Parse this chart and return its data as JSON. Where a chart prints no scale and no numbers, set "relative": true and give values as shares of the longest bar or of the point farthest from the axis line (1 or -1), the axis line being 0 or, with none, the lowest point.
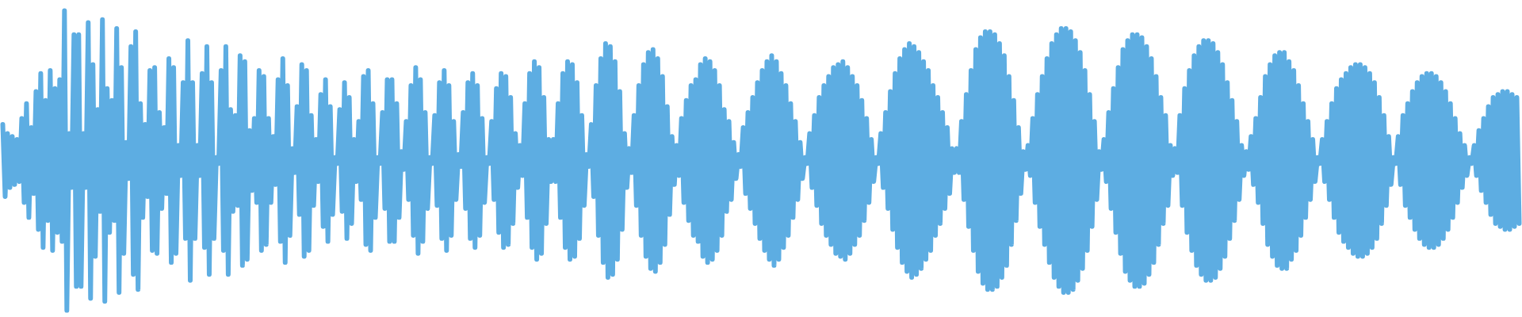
{
  "chart_data": {
    "type": "line",
    "relative": true,
    "tick_labels": false,
    "categories": [
      null,
      null,
      null,
      null,
      null,
      null,
      null,
      null,
      null,
      null,
      null,
      null,
      null,
      null,
      null,
      null,
      null,
      null,
      null,
      null,
      null,
      null,
      null,
      null,
      null,
      null,
      null,
      null,
      null,
      null,
      null,
      null,
      null,
      null,
      null,
      null,
      null,
      null,
      null,
      null,
      null,
      null,
      null,
      null,
      null,
      null,
      null,
      null,
      null,
      null,
      null,
      null,
      null,
      null,
      null,
      null,
      null,
      null,
      null,
      null,
      null,
      null,
      null,
      null,
      null,
      null,
      null,
      null,
      null,
      null,
      null,
      null,
      null,
      null,
      null,
      null,
      null,
      null,
      null,
      null,
      null,
      null,
      null,
      null,
      null,
      null,
      null,
      null,
      null,
      null,
      null,
      null,
      null,
      null,
      null,
      null,
      null,
      null,
      null,
      null,
      null,
      null,
      null,
      null,
      null,
      null,
      null,
      null,
      null,
      null,
      null,
      null,
      null,
      null,
      null,
      null,
      null,
      null,
      null,
      null,
      null,
      null,
      null,
      null,
      null,
      null,
      null,
      null,
      null,
      null,
      null,
      null,
      null,
      null,
      null,
      null,
      null,
      null,
      null,
      null,
      null,
      null,
      null,
      null,
      null,
      null,
      null,
      null,
      null,
      null,
      null,
      null,
      null,
      null,
      null,
      null,
      null,
      null,
      null,
      null,
      null,
      null,
      null,
      null,
      null,
      null,
      null,
      null,
      null,
      null,
      null,
      null,
      null,
      null,
      null,
      null,
      null,
      null,
      null,
      null,
      null,
      null,
      null,
      null,
      null,
      null,
      null,
      null,
      null,
      null,
      null,
      null,
      null,
      null,
      null,
      null,
      null,
      null,
      null,
      null,
      null,
      null,
      null,
      null,
      null,
      null,
      null,
      null,
      null,
      null,
      null,
      null,
      null,
      null,
      null,
      null,
      null,
      null,
      null,
      null,
      null,
      null,
      null,
      null,
      null,
      null,
      null,
      null,
      null,
      null,
      null,
      null,
      null,
      null,
      null,
      null,
      null,
      null,
      null,
      null,
      null,
      null,
      null,
      null,
      null,
      null,
      null,
      null,
      null,
      null,
      null,
      null,
      null,
      null,
      null,
      null,
      null,
      null,
      null,
      null,
      null,
      null,
      null,
      null,
      null,
      null,
      null,
      null,
      null,
      null,
      null,
      null,
      null,
      null,
      null,
      null,
      null,
      null,
      null,
      null,
      null,
      null,
      null,
      null,
      null,
      null,
      null,
      null,
      null,
      null,
      null,
      null,
      null,
      null,
      null,
      null,
      null,
      null,
      null,
      null,
      null,
      null,
      null,
      null,
      null,
      null,
      null,
      null,
      null,
      null,
      null,
      null,
      null,
      null,
      null,
      null,
      null,
      null,
      null,
      null,
      null,
      null,
      null,
      null,
      null,
      null,
      null,
      null,
      null,
      null,
      null,
      null,
      null,
      null,
      null,
      null,
      null,
      null,
      null,
      null,
      null,
      null,
      null,
      null,
      null,
      null,
      null,
      null,
      null,
      null,
      null,
      null,
      null,
      null,
      null,
      null,
      null,
      null,
      null,
      null,
      null,
      null,
      null,
      null,
      null,
      null,
      null,
      null,
      null,
      null,
      null,
      null,
      null,
      null,
      null,
      null,
      null,
      null,
      null,
      null,
      null,
      null,
      null,
      null,
      null,
      null,
      null,
      null,
      null,
      null,
      null,
      null,
      null,
      null,
      null,
      null,
      null,
      null,
      null,
      null,
      null,
      null,
      null,
      null,
      null,
      null,
      null,
      null,
      null,
      null,
      null,
      null,
      null,
      null,
      null,
      null,
      null,
      null,
      null,
      null,
      null,
      null,
      null,
      null,
      null,
      null,
      null,
      null,
      null,
      null,
      null,
      null,
      null,
      null,
      null,
      null,
      null,
      null,
      null,
      null,
      null,
      null,
      null,
      null,
      null,
      null,
      null,
      null,
      null,
      null,
      null,
      null,
      null,
      null,
      null,
      null,
      null,
      null,
      null,
      null,
      null,
      null,
      null,
      null,
      null,
      null,
      null,
      null,
      null,
      null,
      null,
      null,
      null,
      null,
      null,
      null,
      null,
      null,
      null,
      null,
      null,
      null,
      null,
      null,
      null,
      null,
      null,
      null,
      null,
      null,
      null,
      null,
      null,
      null,
      null,
      null,
      null,
      null,
      null,
      null,
      null,
      null,
      null,
      null,
      null,
      null,
      null,
      null,
      null,
      null,
      null,
      null,
      null,
      null,
      null,
      null,
      null,
      null,
      null,
      null,
      null,
      null,
      null,
      null,
      null,
      null,
      null,
      null,
      null,
      null,
      null,
      null,
      null,
      null,
      null,
      null,
      null,
      null,
      null,
      null,
      null,
      null,
      null,
      null,
      null,
      null,
      null,
      null,
      null,
      null,
      null,
      null,
      null,
      null,
      null,
      null,
      null,
      null,
      null,
      null,
      null,
      null,
      null,
      null,
      null,
      null,
      null,
      null,
      null,
      null,
      null,
      null,
      null,
      null,
      null,
      null,
      null,
      null,
      null,
      null,
      null,
      null,
      null,
      null,
      null,
      null,
      null,
      null,
      null,
      null,
      null,
      null,
      null,
      null,
      null,
      null,
      null,
      null,
      null,
      null,
      null,
      null,
      null,
      null,
      null,
      null,
      null,
      null,
      null,
      null,
      null,
      null,
      null,
      null,
      null,
      null,
      null,
      null,
      null,
      null,
      null,
      null,
      null,
      null,
      null,
      null,
      null,
      null,
      null,
      null,
      null,
      null,
      null,
      null,
      null,
      null,
      null,
      null,
      null,
      null
    ],
    "series": [
      {
        "color": "#5dade2",
        "values": [
          0.62,
          0.38,
          0.59,
          0.41,
          0.58,
          0.42,
          0.57,
          0.43,
          0.64,
          0.36,
          0.69,
          0.31,
          0.61,
          0.39,
          0.73,
          0.27,
          0.79,
          0.21,
          0.7,
          0.3,
          0.8,
          0.2,
          0.74,
          0.26,
          0.77,
          0.23,
          1,
          0,
          0.59,
          0.41,
          0.92,
          0.08,
          0.92,
          0.08,
          0.59,
          0.41,
          0.96,
          0.04,
          0.82,
          0.18,
          0.67,
          0.33,
          0.97,
          0.03,
          0.74,
          0.26,
          0.7,
          0.3,
          0.94,
          0.06,
          0.81,
          0.19,
          0.56,
          0.44,
          0.88,
          0.12,
          0.93,
          0.07,
          0.69,
          0.31,
          0.62,
          0.38,
          0.8,
          0.2,
          0.81,
          0.19,
          0.66,
          0.34,
          0.61,
          0.39,
          0.84,
          0.16,
          0.81,
          0.19,
          0.55,
          0.45,
          0.76,
          0.24,
          0.9,
          0.1,
          0.76,
          0.24,
          0.55,
          0.45,
          0.79,
          0.21,
          0.88,
          0.12,
          0.76,
          0.24,
          0.51,
          0.49,
          0.8,
          0.2,
          0.88,
          0.12,
          0.67,
          0.33,
          0.65,
          0.35,
          0.85,
          0.15,
          0.83,
          0.17,
          0.6,
          0.4,
          0.64,
          0.36,
          0.8,
          0.2,
          0.78,
          0.22,
          0.64,
          0.36,
          0.58,
          0.42,
          0.77,
          0.23,
          0.84,
          0.16,
          0.75,
          0.25,
          0.54,
          0.46,
          0.68,
          0.32,
          0.82,
          0.18,
          0.8,
          0.2,
          0.65,
          0.35,
          0.57,
          0.43,
          0.72,
          0.28,
          0.77,
          0.23,
          0.68,
          0.32,
          0.51,
          0.49,
          0.67,
          0.33,
          0.76,
          0.24,
          0.71,
          0.29,
          0.57,
          0.43,
          0.63,
          0.37,
          0.78,
          0.22,
          0.8,
          0.2,
          0.69,
          0.31,
          0.51,
          0.49,
          0.66,
          0.34,
          0.77,
          0.23,
          0.77,
          0.23,
          0.69,
          0.31,
          0.53,
          0.47,
          0.63,
          0.37,
          0.75,
          0.25,
          0.81,
          0.19,
          0.77,
          0.23,
          0.66,
          0.34,
          0.51,
          0.49,
          0.65,
          0.35,
          0.76,
          0.24,
          0.8,
          0.2,
          0.75,
          0.25,
          0.63,
          0.37,
          0.52,
          0.48,
          0.66,
          0.34,
          0.76,
          0.24,
          0.79,
          0.21,
          0.75,
          0.25,
          0.64,
          0.36,
          0.51,
          0.49,
          0.63,
          0.37,
          0.74,
          0.26,
          0.79,
          0.21,
          0.78,
          0.22,
          0.71,
          0.29,
          0.59,
          0.41,
          0.55,
          0.45,
          0.69,
          0.31,
          0.79,
          0.21,
          0.83,
          0.17,
          0.81,
          0.19,
          0.71,
          0.29,
          0.57,
          0.43,
          0.57,
          0.43,
          0.69,
          0.31,
          0.79,
          0.21,
          0.83,
          0.17,
          0.82,
          0.18,
          0.76,
          0.24,
          0.65,
          0.35,
          0.52,
          0.48,
          0.62,
          0.38,
          0.75,
          0.25,
          0.84,
          0.16,
          0.89,
          0.11,
          0.88,
          0.12,
          0.83,
          0.17,
          0.73,
          0.27,
          0.59,
          0.41,
          0.54,
          0.46,
          0.65,
          0.35,
          0.75,
          0.25,
          0.82,
          0.18,
          0.86,
          0.14,
          0.87,
          0.13,
          0.84,
          0.16,
          0.78,
          0.22,
          0.68,
          0.32,
          0.58,
          0.42,
          0.55,
          0.45,
          0.64,
          0.36,
          0.7,
          0.3,
          0.75,
          0.25,
          0.77,
          0.23,
          0.82,
          0.18,
          0.84,
          0.16,
          0.83,
          0.17,
          0.8,
          0.2,
          0.75,
          0.25,
          0.67,
          0.33,
          0.63,
          0.37,
          0.56,
          0.44,
          0.52,
          0.48,
          0.61,
          0.39,
          0.66,
          0.34,
          0.71,
          0.29,
          0.76,
          0.24,
          0.8,
          0.2,
          0.83,
          0.17,
          0.85,
          0.15,
          0.83,
          0.17,
          0.79,
          0.21,
          0.75,
          0.25,
          0.69,
          0.31,
          0.63,
          0.37,
          0.56,
          0.44,
          0.51,
          0.49,
          0.59,
          0.41,
          0.65,
          0.35,
          0.71,
          0.29,
          0.75,
          0.25,
          0.78,
          0.22,
          0.81,
          0.19,
          0.82,
          0.18,
          0.83,
          0.17,
          0.81,
          0.19,
          0.78,
          0.22,
          0.75,
          0.25,
          0.7,
          0.3,
          0.64,
          0.36,
          0.57,
          0.43,
          0.51,
          0.49,
          0.59,
          0.41,
          0.66,
          0.34,
          0.73,
          0.27,
          0.79,
          0.21,
          0.84,
          0.16,
          0.87,
          0.13,
          0.89,
          0.11,
          0.88,
          0.12,
          0.86,
          0.14,
          0.83,
          0.17,
          0.8,
          0.2,
          0.75,
          0.25,
          0.71,
          0.29,
          0.66,
          0.34,
          0.61,
          0.39,
          0.54,
          0.46,
          0.54,
          0.46,
          0.63,
          0.37,
          0.72,
          0.28,
          0.8,
          0.2,
          0.87,
          0.13,
          0.91,
          0.09,
          0.93,
          0.07,
          0.93,
          0.07,
          0.92,
          0.08,
          0.89,
          0.11,
          0.85,
          0.15,
          0.78,
          0.22,
          0.7,
          0.3,
          0.61,
          0.39,
          0.53,
          0.47,
          0.55,
          0.45,
          0.64,
          0.36,
          0.72,
          0.28,
          0.78,
          0.22,
          0.84,
          0.16,
          0.89,
          0.11,
          0.92,
          0.08,
          0.94,
          0.06,
          0.94,
          0.06,
          0.93,
          0.07,
          0.9,
          0.1,
          0.86,
          0.14,
          0.8,
          0.2,
          0.72,
          0.28,
          0.63,
          0.37,
          0.53,
          0.47,
          0.57,
          0.43,
          0.66,
          0.34,
          0.74,
          0.26,
          0.81,
          0.19,
          0.87,
          0.13,
          0.9,
          0.1,
          0.92,
          0.08,
          0.92,
          0.08,
          0.91,
          0.09,
          0.88,
          0.12,
          0.84,
          0.16,
          0.78,
          0.22,
          0.71,
          0.29,
          0.65,
          0.35,
          0.55,
          0.45,
          0.54,
          0.46,
          0.65,
          0.35,
          0.74,
          0.26,
          0.8,
          0.2,
          0.85,
          0.15,
          0.88,
          0.12,
          0.9,
          0.1,
          0.9,
          0.1,
          0.89,
          0.11,
          0.86,
          0.14,
          0.82,
          0.18,
          0.76,
          0.24,
          0.7,
          0.3,
          0.63,
          0.37,
          0.55,
          0.45,
          0.53,
          0.47,
          0.58,
          0.42,
          0.64,
          0.36,
          0.71,
          0.29,
          0.78,
          0.22,
          0.82,
          0.18,
          0.85,
          0.15,
          0.86,
          0.14,
          0.86,
          0.14,
          0.83,
          0.17,
          0.8,
          0.2,
          0.75,
          0.25,
          0.69,
          0.31,
          0.63,
          0.37,
          0.57,
          0.43,
          0.51,
          0.49,
          0.57,
          0.43,
          0.63,
          0.37,
          0.69,
          0.31,
          0.74,
          0.26,
          0.77,
          0.23,
          0.79,
          0.21,
          0.81,
          0.19,
          0.82,
          0.18,
          0.82,
          0.18,
          0.81,
          0.19,
          0.79,
          0.21,
          0.76,
          0.24,
          0.71,
          0.29,
          0.65,
          0.35,
          0.58,
          0.42,
          0.51,
          0.49,
          0.58,
          0.42,
          0.65,
          0.35,
          0.69,
          0.31,
          0.73,
          0.27,
          0.76,
          0.24,
          0.78,
          0.22,
          0.79,
          0.21,
          0.79,
          0.21,
          0.78,
          0.22,
          0.76,
          0.24,
          0.73,
          0.27,
          0.69,
          0.31,
          0.64,
          0.36,
          0.59,
          0.41,
          0.55,
          0.45,
          0.51,
          0.49,
          0.55,
          0.45,
          0.6,
          0.4,
          0.64,
          0.36,
          0.68,
          0.32,
          0.71,
          0.29,
          0.72,
          0.28,
          0.73,
          0.27,
          0.73,
          0.27,
          0.72,
          0.28,
          0.71,
          0.29
        ]
      }
    ]
  }
}
